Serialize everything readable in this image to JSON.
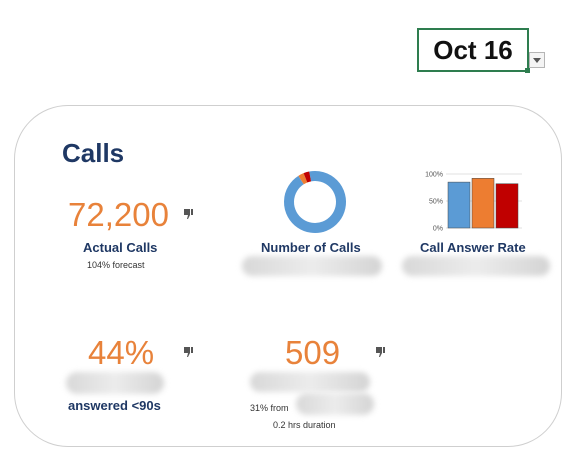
{
  "date_selector": {
    "value": "Oct 16"
  },
  "card": {
    "title": "Calls",
    "actual_calls": {
      "value": "72,200",
      "label": "Actual Calls",
      "sub": "104% forecast",
      "icon": "thumb-down-icon"
    },
    "number_of_calls": {
      "label": "Number of Calls",
      "icon": "donut-chart",
      "colors": [
        "#5b9bd5",
        "#ed7d31",
        "#c00000"
      ]
    },
    "call_answer_rate": {
      "label": "Call Answer Rate"
    },
    "answered_pct": {
      "value": "44%",
      "label": "answered <90s",
      "icon": "thumb-down-icon"
    },
    "duration": {
      "value": "509",
      "sub_prefix": "31% from",
      "sub2": "0.2 hrs duration",
      "icon": "thumb-down-icon"
    }
  },
  "chart_data": [
    {
      "type": "pie",
      "title": "",
      "values": [
        94,
        3,
        3
      ],
      "colors": [
        "#5b9bd5",
        "#ed7d31",
        "#c00000"
      ]
    },
    {
      "type": "bar",
      "title": "",
      "categories": [
        "",
        "",
        ""
      ],
      "values": [
        85,
        92,
        82
      ],
      "colors": [
        "#5b9bd5",
        "#ed7d31",
        "#c00000"
      ],
      "ylim": [
        0,
        100
      ],
      "yticks": [
        "0%",
        "50%",
        "100%"
      ],
      "grid": true
    }
  ]
}
